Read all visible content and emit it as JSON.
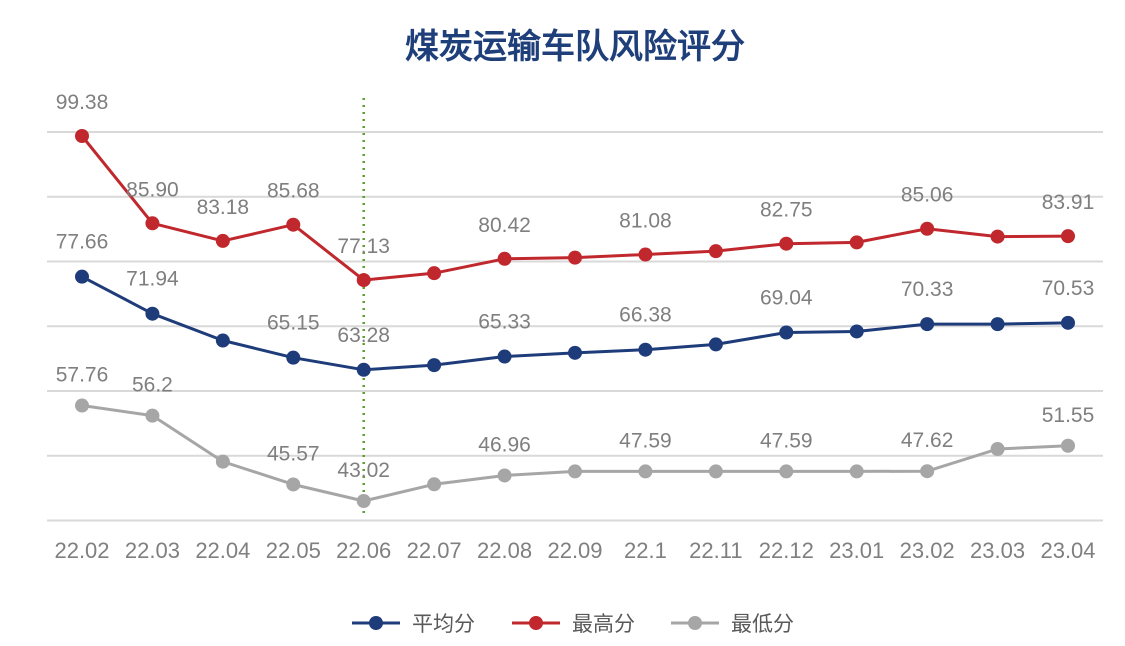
{
  "chart_data": {
    "type": "line",
    "title": "煤炭运输车队风险评分",
    "xlabel": "",
    "ylabel": "",
    "categories": [
      "22.02",
      "22.03",
      "22.04",
      "22.05",
      "22.06",
      "22.07",
      "22.08",
      "22.09",
      "22.1",
      "22.11",
      "22.12",
      "23.01",
      "23.02",
      "23.03",
      "23.04"
    ],
    "ylim": [
      35,
      105
    ],
    "grid": true,
    "legend_position": "bottom",
    "marker_line_at": "22.06",
    "series": [
      {
        "name": "平均分",
        "color": "#1f3c7a",
        "values": [
          77.66,
          71.94,
          67.8,
          65.15,
          63.28,
          64.0,
          65.33,
          65.9,
          66.38,
          67.2,
          69.04,
          69.2,
          70.33,
          70.33,
          70.53
        ],
        "labels": [
          "77.66",
          "71.94",
          "",
          "65.15",
          "63.28",
          "",
          "65.33",
          "",
          "66.38",
          "",
          "69.04",
          "",
          "70.33",
          "",
          "70.53"
        ]
      },
      {
        "name": "最高分",
        "color": "#c0282d",
        "values": [
          99.38,
          85.9,
          83.18,
          85.68,
          77.13,
          78.2,
          80.42,
          80.6,
          81.08,
          81.6,
          82.75,
          82.95,
          85.06,
          83.85,
          83.91
        ],
        "labels": [
          "99.38",
          "85.90",
          "83.18",
          "85.68",
          "77.13",
          "",
          "80.42",
          "",
          "81.08",
          "",
          "82.75",
          "",
          "85.06",
          "",
          "83.91"
        ]
      },
      {
        "name": "最低分",
        "color": "#a6a6a6",
        "values": [
          57.76,
          56.2,
          49.1,
          45.57,
          43.02,
          45.6,
          46.96,
          47.59,
          47.59,
          47.59,
          47.59,
          47.59,
          47.62,
          51.05,
          51.55
        ],
        "labels": [
          "57.76",
          "56.2",
          "",
          "45.57",
          "43.02",
          "",
          "46.96",
          "",
          "47.59",
          "",
          "47.59",
          "",
          "47.62",
          "",
          "51.55"
        ]
      }
    ]
  }
}
